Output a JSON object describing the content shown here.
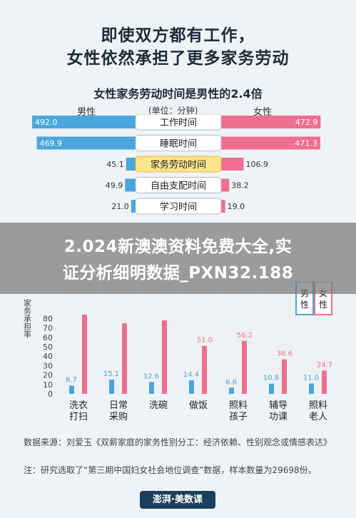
{
  "title": {
    "line1": "即使双方都有工作，",
    "line2": "女性依然承担了更多家务劳动"
  },
  "section_title": "女性家务劳动时间是男性的2.4倍",
  "butterfly_headers": {
    "left": "男性",
    "unit": "(单位：分钟)",
    "right": "女性"
  },
  "overlay": {
    "line1": "2.024新澳澳资料免费大全,实",
    "line2": "证分析细明数据_PXN32.188"
  },
  "colors": {
    "male": "#4aa6dc",
    "female": "#ef6f90",
    "highlight": "#fde58a",
    "axis": "#555555"
  },
  "chart_data": [
    {
      "type": "bar",
      "orientation": "horizontal-butterfly",
      "title": "女性家务劳动时间是男性的2.4倍",
      "unit": "(单位：分钟)",
      "categories": [
        "工作时间",
        "睡眠时间",
        "家务劳动时间",
        "自由支配时间",
        "学习时间"
      ],
      "highlight_category": "家务劳动时间",
      "series": [
        {
          "name": "男性",
          "values": [
            492.0,
            469.9,
            45.1,
            49.9,
            21.0
          ],
          "labels": [
            "492.0",
            "469.9",
            "45.1",
            "49.9",
            "21.0"
          ]
        },
        {
          "name": "女性",
          "values": [
            472.9,
            471.3,
            106.9,
            38.2,
            19.0
          ],
          "labels": [
            "472.9",
            "471.3",
            "106.9",
            "38.2",
            "19.0"
          ]
        }
      ]
    },
    {
      "type": "bar",
      "ylabel": "家务承担率",
      "ylim": [
        0,
        100
      ],
      "yticks": [
        "0",
        "10",
        "20",
        "30",
        "40",
        "50",
        "60",
        "70",
        "80"
      ],
      "categories": [
        "洗衣\n打扫",
        "日常\n采购",
        "洗碗",
        "做饭",
        "照料\n孩子",
        "辅导\n功课",
        "照料\n老人"
      ],
      "legend": [
        "男\n性",
        "女\n性"
      ],
      "legend_position": "top-right",
      "series": [
        {
          "name": "男性",
          "values": [
            8.7,
            15.1,
            12.6,
            14.4,
            6.6,
            10.8,
            11.0
          ],
          "labels": [
            "8.7",
            "15.1",
            "12.6",
            "14.4",
            "6.6",
            "10.8",
            "11.0"
          ]
        },
        {
          "name": "女性",
          "values": [
            84.0,
            75.0,
            78.0,
            51.0,
            56.2,
            36.6,
            24.7
          ],
          "labels": [
            "",
            "",
            "",
            "51.0",
            "56.2",
            "36.6",
            "24.7"
          ]
        }
      ]
    }
  ],
  "source": {
    "line1": "数据来源：刘爱玉《双薪家庭的家务性别分工：经济依赖、性别观念或情感表达》",
    "line2": "注：研究选取了“第三期中国妇女社会地位调查”数据，样本数量为29698份。"
  },
  "logo": "澎湃·美数课"
}
